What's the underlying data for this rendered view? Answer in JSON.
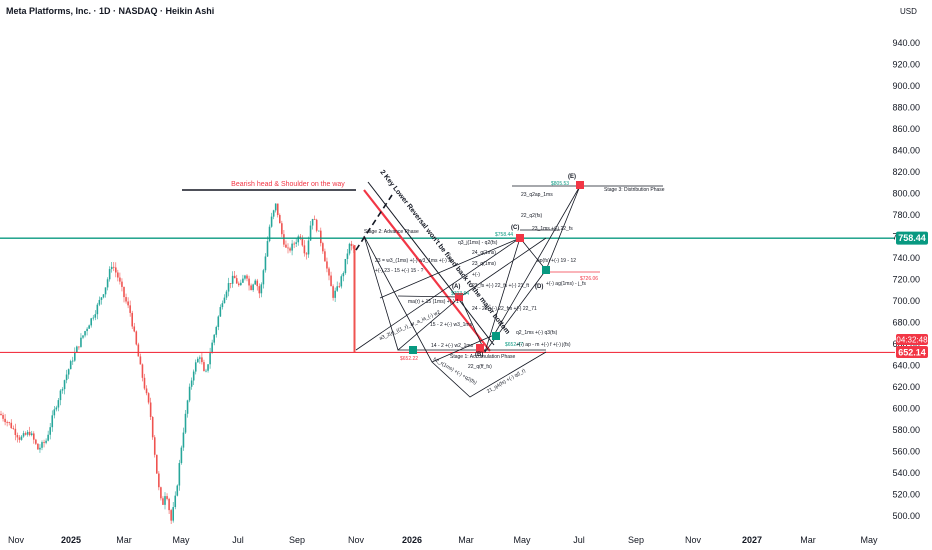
{
  "header": {
    "title": "Meta Platforms, Inc. · 1D · NASDAQ · Heikin Ashi",
    "currency": "USD"
  },
  "colors": {
    "up": "#26a69a",
    "down": "#ef5350",
    "teal_line": "#089981",
    "red_line": "#f23645",
    "text": "#131722"
  },
  "chart_data": {
    "type": "candlestick",
    "chart_style": "Heikin Ashi",
    "interval": "1D",
    "ylim": [
      490,
      960
    ],
    "y_ticks": [
      500,
      520,
      540,
      560,
      580,
      600,
      620,
      640,
      660,
      680,
      700,
      720,
      740,
      760,
      780,
      800,
      820,
      840,
      860,
      880,
      900,
      920,
      940
    ],
    "x_ticks": [
      "Nov",
      "2025",
      "Mar",
      "May",
      "Jul",
      "Sep",
      "Nov",
      "2026",
      "Mar",
      "May",
      "Jul",
      "Sep",
      "Nov",
      "2027",
      "Mar",
      "May"
    ],
    "bold_x_ticks": [
      "2025",
      "2026",
      "2027"
    ],
    "price_path": [
      [
        0,
        595
      ],
      [
        10,
        585
      ],
      [
        20,
        572
      ],
      [
        30,
        578
      ],
      [
        38,
        562
      ],
      [
        46,
        570
      ],
      [
        55,
        600
      ],
      [
        65,
        628
      ],
      [
        75,
        652
      ],
      [
        85,
        672
      ],
      [
        95,
        690
      ],
      [
        105,
        712
      ],
      [
        112,
        735
      ],
      [
        118,
        722
      ],
      [
        124,
        704
      ],
      [
        130,
        690
      ],
      [
        136,
        660
      ],
      [
        140,
        640
      ],
      [
        145,
        618
      ],
      [
        150,
        598
      ],
      [
        154,
        565
      ],
      [
        158,
        530
      ],
      [
        162,
        508
      ],
      [
        166,
        525
      ],
      [
        171,
        495
      ],
      [
        176,
        520
      ],
      [
        182,
        570
      ],
      [
        188,
        610
      ],
      [
        194,
        638
      ],
      [
        200,
        650
      ],
      [
        205,
        628
      ],
      [
        210,
        652
      ],
      [
        215,
        672
      ],
      [
        222,
        700
      ],
      [
        228,
        715
      ],
      [
        234,
        722
      ],
      [
        240,
        712
      ],
      [
        246,
        728
      ],
      [
        250,
        710
      ],
      [
        255,
        722
      ],
      [
        260,
        705
      ],
      [
        265,
        740
      ],
      [
        270,
        772
      ],
      [
        276,
        790
      ],
      [
        281,
        765
      ],
      [
        287,
        745
      ],
      [
        293,
        752
      ],
      [
        300,
        762
      ],
      [
        306,
        742
      ],
      [
        312,
        780
      ],
      [
        318,
        765
      ],
      [
        323,
        748
      ],
      [
        328,
        725
      ],
      [
        333,
        705
      ],
      [
        338,
        712
      ],
      [
        343,
        726
      ],
      [
        349,
        752
      ],
      [
        354,
        748
      ]
    ],
    "horizontal_levels": [
      {
        "price": 758.44,
        "label": "758.44",
        "color": "#089981"
      },
      {
        "price": 652.14,
        "label": "652.14",
        "color": "#f23645"
      }
    ],
    "countdown": "04:32:48",
    "markers": [
      {
        "label": "(A)",
        "price_label": "$703.64"
      },
      {
        "label": "(B)",
        "price_label": "$652.47"
      },
      {
        "label": "(C)",
        "price_label": "$758.44"
      },
      {
        "label": "(D)",
        "price_label": "$726.06"
      },
      {
        "label": "(E)",
        "price_label": "$805.53"
      },
      {
        "label": "",
        "price_label": "$652.22"
      }
    ],
    "annotations": {
      "head_shoulder": "Bearish head & Shoulder on the way",
      "stage1": "Stage 1: Accumulation Phase",
      "stage2": "Stage 2: Advance Phase",
      "stage3": "Stage 3: Distribution Phase",
      "diag": "2 Key Lower Reversal won't be fixed back to the major bottom",
      "formulas": [
        "23 = w3_(1ms) +(-) w3_1ms +(-) 2.",
        "+(-) 23 - 15 +(-) 15 - ?",
        "ma(r) + 15 (1ms) +(-) 1",
        "15 - 2 +(-) w3_1ms",
        "14 - 2 +(-) w2_1ms",
        "24 - 23 +(-) 22_fm +(-) 22_71",
        "23_q(1ms)",
        "23_fs +(-) 22_fs +(-) 21_ft",
        "q2_1ms +(-) q3(fs)",
        "+(-) ap - m +(-) f +(-) j(fs)",
        "q3_j(1ms) - q2(fs)",
        "23_q2ap_1ms",
        "22_q2(fs)",
        "23_1ms +(-) 22_fs",
        "ap(fs) +(-) 19 - 12",
        "+(-) ag(1ms) - j_fs",
        "22_q(ff_fs)",
        "21_q4(fs) +(-) q(l_r)",
        "a3_2(r)_((1_r)_ar_a_ia_(-) w2",
        "b2_r(1ms) +(-) +q2(fs)",
        "24_q(1ms)",
        "+(-)"
      ]
    }
  }
}
